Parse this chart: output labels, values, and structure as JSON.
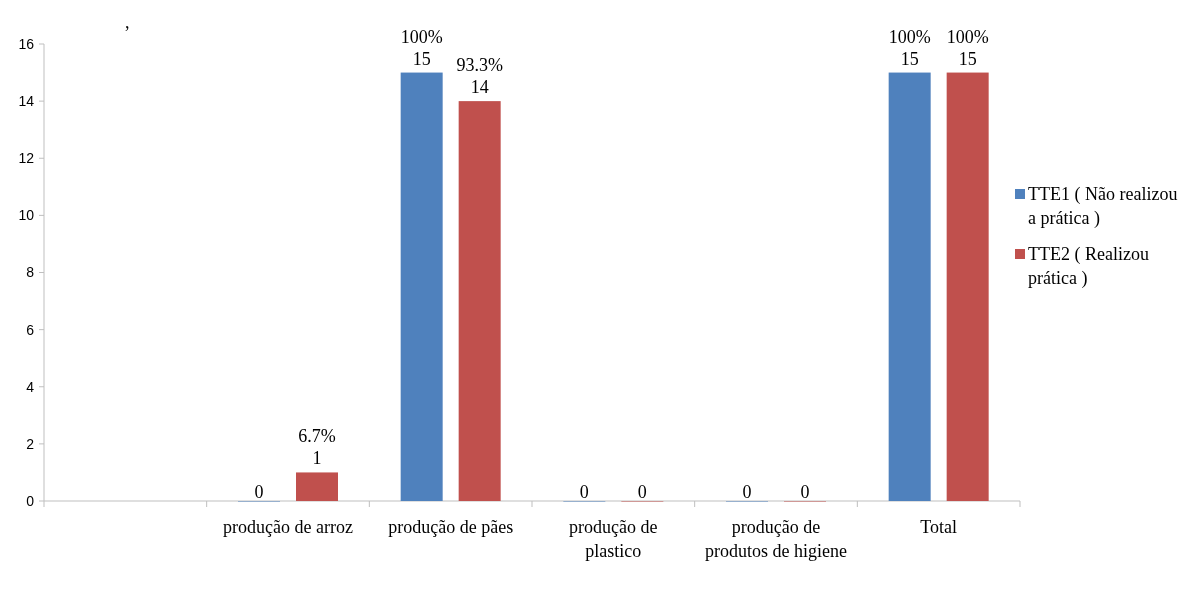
{
  "chart_data": {
    "type": "bar",
    "title": ",",
    "categories": [
      null,
      "produção de arroz",
      "produção de pães",
      "produção de plastico",
      "produção de produtos de higiene",
      "Total"
    ],
    "series": [
      {
        "name": "TTE1 ( Não realizou a prática )",
        "color": "#4f81bd",
        "values": [
          null,
          0,
          15,
          0,
          0,
          15
        ],
        "value_labels": [
          null,
          "0",
          "100%\n15",
          "0",
          "0",
          "100%\n15"
        ]
      },
      {
        "name": "TTE2 ( Realizou prática )",
        "color": "#c0504d",
        "values": [
          null,
          1,
          14,
          0,
          0,
          15
        ],
        "value_labels": [
          null,
          "6.7%\n1",
          "93.3%\n14",
          "0",
          "0",
          "100%\n15"
        ]
      }
    ],
    "ylim": [
      0,
      16
    ],
    "yticks": [
      0,
      2,
      4,
      6,
      8,
      10,
      12,
      14,
      16
    ],
    "grid": false,
    "legend": "right"
  }
}
